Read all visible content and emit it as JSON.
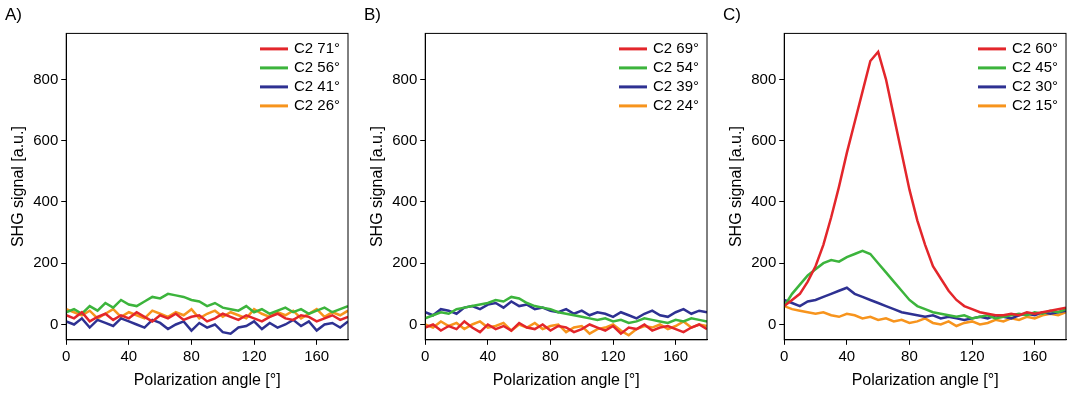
{
  "chart_data": [
    {
      "type": "line",
      "title": "A)",
      "x_label": "Polarization angle [°]",
      "y_label": "SHG signal [a.u.]",
      "x": [
        0,
        5,
        10,
        15,
        20,
        25,
        30,
        35,
        40,
        45,
        50,
        55,
        60,
        65,
        70,
        75,
        80,
        85,
        90,
        95,
        100,
        105,
        110,
        115,
        120,
        125,
        130,
        135,
        140,
        145,
        150,
        155,
        160,
        165,
        170,
        175,
        180
      ],
      "xlim": [
        0,
        180
      ],
      "xticks": [
        0,
        40,
        80,
        120,
        160
      ],
      "ylim": [
        -50,
        950
      ],
      "yticks": [
        0,
        200,
        400,
        600,
        800
      ],
      "grid": false,
      "legend": "top-right",
      "series": [
        {
          "name": "C2 71°",
          "color": "#e3262b",
          "values": [
            30,
            20,
            40,
            10,
            25,
            35,
            15,
            30,
            20,
            40,
            25,
            10,
            30,
            20,
            35,
            15,
            25,
            30,
            10,
            20,
            35,
            25,
            15,
            30,
            20,
            10,
            25,
            35,
            20,
            15,
            30,
            25,
            10,
            20,
            30,
            15,
            25
          ]
        },
        {
          "name": "C2 56°",
          "color": "#3cb43c",
          "values": [
            40,
            50,
            35,
            60,
            45,
            70,
            55,
            80,
            65,
            60,
            75,
            90,
            85,
            100,
            95,
            90,
            80,
            75,
            60,
            70,
            55,
            50,
            45,
            60,
            40,
            50,
            35,
            45,
            55,
            40,
            50,
            35,
            45,
            55,
            40,
            50,
            60
          ]
        },
        {
          "name": "C2 41°",
          "color": "#2e3192",
          "values": [
            10,
            0,
            20,
            -10,
            15,
            5,
            -5,
            20,
            10,
            0,
            -10,
            15,
            5,
            -15,
            0,
            10,
            -20,
            5,
            -10,
            0,
            -25,
            -30,
            -10,
            -5,
            10,
            -15,
            5,
            -10,
            0,
            15,
            -5,
            10,
            -20,
            0,
            5,
            -10,
            10
          ]
        },
        {
          "name": "C2 26°",
          "color": "#f7941d",
          "values": [
            50,
            40,
            30,
            45,
            20,
            35,
            50,
            25,
            40,
            30,
            20,
            45,
            35,
            25,
            40,
            30,
            50,
            20,
            35,
            45,
            25,
            40,
            30,
            20,
            50,
            35,
            25,
            40,
            30,
            45,
            20,
            35,
            50,
            25,
            40,
            30,
            45
          ]
        }
      ]
    },
    {
      "type": "line",
      "title": "B)",
      "x_label": "Polarization angle [°]",
      "y_label": "SHG signal [a.u.]",
      "x": [
        0,
        5,
        10,
        15,
        20,
        25,
        30,
        35,
        40,
        45,
        50,
        55,
        60,
        65,
        70,
        75,
        80,
        85,
        90,
        95,
        100,
        105,
        110,
        115,
        120,
        125,
        130,
        135,
        140,
        145,
        150,
        155,
        160,
        165,
        170,
        175,
        180
      ],
      "xlim": [
        0,
        180
      ],
      "xticks": [
        0,
        40,
        80,
        120,
        160
      ],
      "ylim": [
        -50,
        950
      ],
      "yticks": [
        0,
        200,
        400,
        600,
        800
      ],
      "grid": false,
      "legend": "top-right",
      "series": [
        {
          "name": "C2 69°",
          "color": "#e3262b",
          "values": [
            -10,
            0,
            -20,
            -5,
            -15,
            10,
            -10,
            -25,
            0,
            -15,
            -5,
            -20,
            5,
            -10,
            -15,
            0,
            -20,
            -5,
            -10,
            -25,
            -15,
            0,
            -10,
            -20,
            -5,
            -30,
            -10,
            -15,
            0,
            -20,
            -10,
            -5,
            -15,
            -25,
            -10,
            0,
            -15
          ]
        },
        {
          "name": "C2 54°",
          "color": "#3cb43c",
          "values": [
            20,
            30,
            40,
            35,
            50,
            55,
            60,
            65,
            70,
            80,
            75,
            90,
            85,
            70,
            60,
            55,
            50,
            40,
            35,
            30,
            25,
            20,
            15,
            20,
            10,
            15,
            5,
            10,
            20,
            15,
            10,
            5,
            15,
            10,
            20,
            15,
            10
          ]
        },
        {
          "name": "C2 39°",
          "color": "#2e3192",
          "values": [
            40,
            30,
            50,
            45,
            35,
            55,
            60,
            50,
            65,
            70,
            55,
            75,
            60,
            65,
            50,
            55,
            45,
            40,
            50,
            35,
            45,
            30,
            40,
            35,
            25,
            40,
            30,
            20,
            35,
            45,
            30,
            25,
            40,
            50,
            35,
            45,
            40
          ]
        },
        {
          "name": "C2 24°",
          "color": "#f7941d",
          "values": [
            0,
            -10,
            10,
            -5,
            5,
            -15,
            0,
            10,
            -10,
            -5,
            5,
            -20,
            0,
            -10,
            5,
            -15,
            -5,
            0,
            -25,
            -10,
            -5,
            -30,
            -15,
            -10,
            0,
            -20,
            -35,
            -15,
            -5,
            -10,
            0,
            -15,
            -5,
            10,
            -10,
            0,
            -5
          ]
        }
      ]
    },
    {
      "type": "line",
      "title": "C)",
      "x_label": "Polarization angle [°]",
      "y_label": "SHG signal [a.u.]",
      "x": [
        0,
        5,
        10,
        15,
        20,
        25,
        30,
        35,
        40,
        45,
        50,
        55,
        60,
        65,
        70,
        75,
        80,
        85,
        90,
        95,
        100,
        105,
        110,
        115,
        120,
        125,
        130,
        135,
        140,
        145,
        150,
        155,
        160,
        165,
        170,
        175,
        180
      ],
      "xlim": [
        0,
        180
      ],
      "xticks": [
        0,
        40,
        80,
        120,
        160
      ],
      "ylim": [
        -50,
        950
      ],
      "yticks": [
        0,
        200,
        400,
        600,
        800
      ],
      "grid": false,
      "legend": "top-right",
      "series": [
        {
          "name": "C2 60°",
          "color": "#e3262b",
          "values": [
            60,
            80,
            100,
            140,
            190,
            260,
            350,
            450,
            560,
            660,
            760,
            860,
            890,
            800,
            680,
            560,
            440,
            340,
            260,
            190,
            150,
            110,
            80,
            60,
            50,
            40,
            35,
            30,
            30,
            35,
            30,
            40,
            35,
            40,
            45,
            50,
            55
          ]
        },
        {
          "name": "C2 45°",
          "color": "#3cb43c",
          "values": [
            60,
            100,
            130,
            160,
            180,
            200,
            210,
            205,
            220,
            230,
            240,
            230,
            200,
            170,
            140,
            110,
            80,
            60,
            50,
            40,
            35,
            30,
            25,
            30,
            20,
            25,
            30,
            20,
            25,
            30,
            35,
            30,
            40,
            35,
            45,
            40,
            50
          ]
        },
        {
          "name": "C2 30°",
          "color": "#2e3192",
          "values": [
            80,
            70,
            60,
            75,
            80,
            90,
            100,
            110,
            120,
            100,
            90,
            80,
            70,
            60,
            50,
            40,
            35,
            30,
            25,
            30,
            20,
            25,
            20,
            15,
            20,
            25,
            20,
            30,
            25,
            20,
            30,
            35,
            30,
            40,
            35,
            40,
            45
          ]
        },
        {
          "name": "C2 15°",
          "color": "#f7941d",
          "values": [
            60,
            50,
            45,
            40,
            35,
            40,
            30,
            25,
            35,
            30,
            20,
            25,
            15,
            20,
            10,
            15,
            5,
            10,
            20,
            5,
            0,
            10,
            -5,
            5,
            10,
            0,
            5,
            15,
            10,
            20,
            15,
            25,
            20,
            30,
            35,
            30,
            40
          ]
        }
      ]
    }
  ]
}
